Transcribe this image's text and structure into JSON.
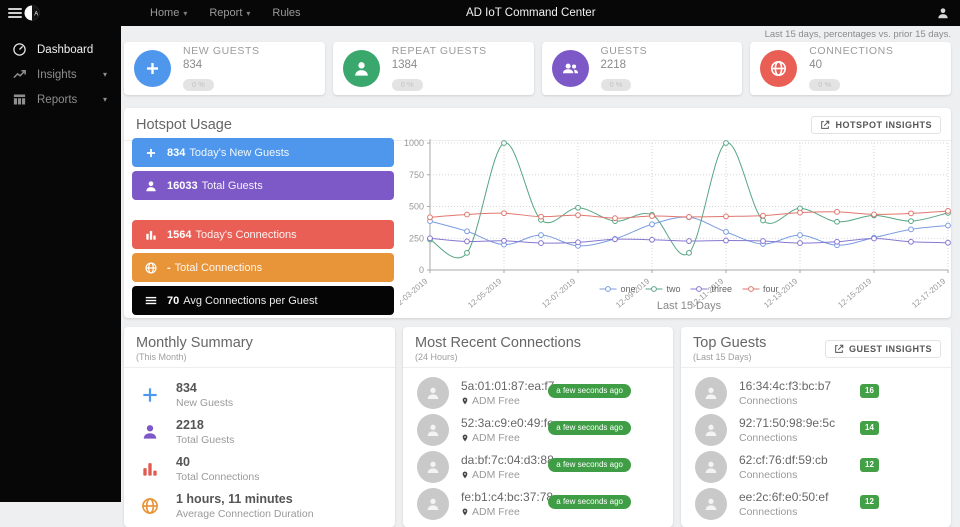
{
  "navbar": {
    "title": "AD IoT Command Center",
    "menu": [
      {
        "label": "Home"
      },
      {
        "label": "Report"
      },
      {
        "label": "Rules"
      }
    ]
  },
  "sidebar": {
    "items": [
      {
        "label": "Dashboard"
      },
      {
        "label": "Insights"
      },
      {
        "label": "Reports"
      }
    ]
  },
  "note": "Last 15 days, percentages vs. prior 15 days.",
  "stats": [
    {
      "title": "NEW GUESTS",
      "value": "834",
      "trend": "0 %"
    },
    {
      "title": "REPEAT GUESTS",
      "value": "1384",
      "trend": "0 %"
    },
    {
      "title": "GUESTS",
      "value": "2218",
      "trend": "0 %"
    },
    {
      "title": "CONNECTIONS",
      "value": "40",
      "trend": "0 %"
    }
  ],
  "hotspot": {
    "title": "Hotspot Usage",
    "insights_label": "HOTSPOT INSIGHTS",
    "buttons": [
      {
        "value": "834",
        "label": "Today's New Guests"
      },
      {
        "value": "16033",
        "label": "Total Guests"
      },
      {
        "value": "1564",
        "label": "Today's Connections"
      },
      {
        "value": "-",
        "label": "Total Connections"
      },
      {
        "value": "70",
        "label": "Avg Connections per Guest"
      }
    ]
  },
  "chart_data": {
    "type": "line",
    "x": [
      "12-03-2019",
      "12-04-2019",
      "12-05-2019",
      "12-06-2019",
      "12-07-2019",
      "12-08-2019",
      "12-09-2019",
      "12-10-2019",
      "12-11-2019",
      "12-12-2019",
      "12-13-2019",
      "12-14-2019",
      "12-15-2019",
      "12-16-2019",
      "12-17-2019"
    ],
    "xtick_every": 2,
    "series": [
      {
        "name": "one",
        "color": "#7b9ce0",
        "values": [
          385,
          305,
          200,
          275,
          190,
          245,
          360,
          415,
          300,
          205,
          275,
          195,
          255,
          320,
          350
        ]
      },
      {
        "name": "two",
        "color": "#57a583",
        "values": [
          240,
          135,
          1000,
          395,
          490,
          385,
          435,
          135,
          1000,
          390,
          485,
          380,
          430,
          385,
          450
        ]
      },
      {
        "name": "three",
        "color": "#8678d0",
        "values": [
          250,
          225,
          230,
          212,
          218,
          242,
          238,
          228,
          232,
          228,
          212,
          222,
          248,
          222,
          215
        ]
      },
      {
        "name": "four",
        "color": "#e0766e",
        "values": [
          415,
          437,
          447,
          420,
          432,
          408,
          425,
          418,
          422,
          428,
          452,
          458,
          438,
          446,
          465
        ]
      }
    ],
    "ylim": [
      0,
      1000
    ],
    "yticks": [
      0,
      250,
      500,
      750,
      1000
    ],
    "xlabel": "Last 15 Days",
    "grid": true,
    "legend_position": "bottom-center"
  },
  "monthly": {
    "title": "Monthly Summary",
    "subtitle": "(This Month)",
    "items": [
      {
        "value": "834",
        "label": "New Guests"
      },
      {
        "value": "2218",
        "label": "Total Guests"
      },
      {
        "value": "40",
        "label": "Total Connections"
      },
      {
        "value": "1 hours, 11 minutes",
        "label": "Average Connection Duration"
      }
    ]
  },
  "recent": {
    "title": "Most Recent Connections",
    "subtitle": "(24 Hours)",
    "rows": [
      {
        "mac": "5a:01:01:87:ea:f7",
        "location": "ADM Free",
        "time": "a few seconds ago"
      },
      {
        "mac": "52:3a:c9:e0:49:fe",
        "location": "ADM Free",
        "time": "a few seconds ago"
      },
      {
        "mac": "da:bf:7c:04:d3:88",
        "location": "ADM Free",
        "time": "a few seconds ago"
      },
      {
        "mac": "fe:b1:c4:bc:37:78",
        "location": "ADM Free",
        "time": "a few seconds ago"
      }
    ]
  },
  "top_guests": {
    "title": "Top Guests",
    "subtitle": "(Last 15 Days)",
    "insights_label": "GUEST INSIGHTS",
    "rows": [
      {
        "mac": "16:34:4c:f3:bc:b7",
        "label": "Connections",
        "count": "16"
      },
      {
        "mac": "92:71:50:98:9e:5c",
        "label": "Connections",
        "count": "14"
      },
      {
        "mac": "62:cf:76:df:59:cb",
        "label": "Connections",
        "count": "12"
      },
      {
        "mac": "ee:2c:6f:e0:50:ef",
        "label": "Connections",
        "count": "12"
      }
    ]
  },
  "colors": {
    "accent_blue": "#4e97ec",
    "accent_green": "#3aa76d",
    "accent_purple": "#7d59c8",
    "accent_red": "#ea5f55",
    "accent_orange": "#e89439",
    "badge_green": "#43a047",
    "navbar_black": "#070707"
  }
}
